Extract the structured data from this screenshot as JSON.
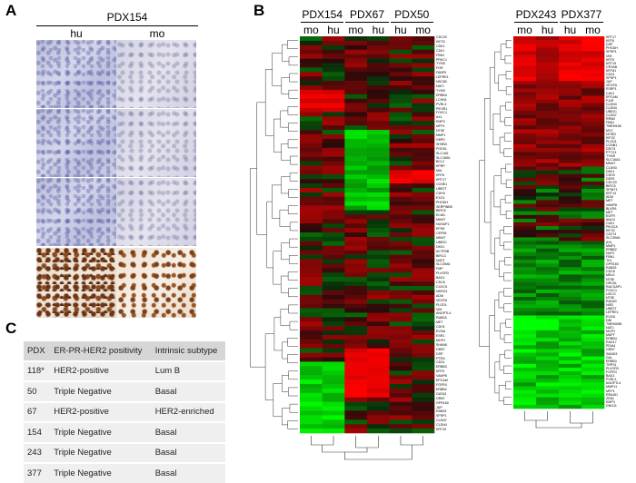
{
  "panelA": {
    "letter": "A",
    "title": "PDX154",
    "col_left": "hu",
    "col_right": "mo"
  },
  "panelB": {
    "letter": "B",
    "left_groups": [
      {
        "name": "PDX154",
        "cols": [
          "mo",
          "hu"
        ]
      },
      {
        "name": "PDX67",
        "cols": [
          "mo",
          "hu"
        ]
      },
      {
        "name": "PDX50",
        "cols": [
          "hu",
          "mo"
        ]
      }
    ],
    "right_groups": [
      {
        "name": "PDX243",
        "cols": [
          "mo",
          "hu"
        ]
      },
      {
        "name": "PDX377",
        "cols": [
          "hu",
          "mo"
        ]
      }
    ],
    "genes_left": [
      "CDC20",
      "KIF2C",
      "CDK1",
      "CAV1",
      "FBN1",
      "PRKC1",
      "TYMS",
      "FGR",
      "FABP5",
      "LEPRE1",
      "NDC80",
      "NAT1",
      "TYMS",
      "ERBB4",
      "LCHN1",
      "PVRL3",
      "PIK3R1",
      "FOXC1",
      "AXL",
      "EMP3",
      "MFP1",
      "NT5E",
      "MMP1",
      "G6PD",
      "SHSB3",
      "PODXL",
      "SLC1A5",
      "SLC16A5",
      "BCL2",
      "KPRP",
      "MIA",
      "KRT6",
      "KRT17",
      "CCNE1",
      "UBE2T",
      "CDH3",
      "EXO1",
      "PHGDH",
      "SERPINB5",
      "BIRC5",
      "ECAD",
      "MKI67",
      "NUSAP1",
      "EPS8",
      "CEP55",
      "MKI67",
      "UBE2C",
      "DKK1",
      "ACTR3B",
      "BIRC3",
      "NUF2",
      "SLC39A6",
      "FMP",
      "PLVOR3",
      "BAG1",
      "CDC6",
      "CXXC5",
      "NDRG1",
      "ADM",
      "VEGFA",
      "PLOD1",
      "VIM",
      "ANGPTL4",
      "RAB2A",
      "MET",
      "CDH1",
      "EVI2A",
      "ESR1",
      "MLPH",
      "SHANK",
      "GRB7",
      "DSP",
      "PTEN",
      "CD24",
      "ERBB3",
      "KRT5",
      "VAMP8",
      "EPCAM",
      "FGFR4",
      "ERBB2",
      "GATA3",
      "GRB7",
      "GPR160",
      "JUP",
      "RAB25",
      "SFRP1",
      "CLDN7",
      "CLDN4",
      "KRT19"
    ],
    "genes_right": [
      "KRT17",
      "KRT6",
      "DSP",
      "PHGDH",
      "SFRP1",
      "VIM",
      "KRT5",
      "KRT19",
      "CRYAB",
      "KRT81",
      "CD24",
      "SFRP1",
      "JUP",
      "VEGFA",
      "ESRP1",
      "CAV1",
      "EPCAM",
      "F11R",
      "CLDN3",
      "CLDN4",
      "UBE2C",
      "CLDN7",
      "RRM2",
      "FBN1",
      "TMEM158",
      "MYC",
      "NT5E2",
      "KIF2C",
      "PLOD1",
      "CCNB1",
      "DDIT4",
      "PTTG1",
      "TYMS",
      "SLC16A3",
      "MKI67",
      "CLDN3",
      "DKK1",
      "CDH3",
      "DDR1",
      "CDC20",
      "BIRC5",
      "SPINT1",
      "KRT14",
      "ADM",
      "MET",
      "VAMP8",
      "BLVRA",
      "MET",
      "EGFR",
      "ANLN",
      "CAV1",
      "PIK3CA",
      "KIF2C",
      "CD274",
      "SLC39A6",
      "AXL",
      "MMP1",
      "ERBB2",
      "NUF2",
      "FBN1",
      "TK1",
      "GPR160",
      "RAB25",
      "CDC6",
      "MELK",
      "NT5E",
      "ORC6L",
      "RACGAP1",
      "FOXC1",
      "UGCG",
      "NT5E",
      "RAD50",
      "NIR2",
      "UBE2T",
      "LEPRE1",
      "EVI2A",
      "DBI",
      "TMEM45B",
      "NAT1",
      "MLPH",
      "MAPT",
      "ERBB4",
      "RAD17",
      "PDIA4",
      "GRB7",
      "SMAD3",
      "GAL",
      "ERBB3",
      "TRPS1",
      "PLVOR3",
      "FGFR4",
      "BAG1",
      "PVRL3",
      "ANGPTL4",
      "MMP11",
      "MFP1",
      "RRAGD",
      "ZEB1",
      "EMP3",
      "GNG11"
    ]
  },
  "panelC": {
    "letter": "C",
    "headers": [
      "PDX",
      "ER-PR-HER2 positivity",
      "Intrinsic subtype"
    ],
    "rows": [
      [
        "118*",
        "HER2-positive",
        "Lum B"
      ],
      [
        "50",
        "Triple Negative",
        "Basal"
      ],
      [
        "67",
        "HER2-positive",
        "HER2-enriched"
      ],
      [
        "154",
        "Triple Negative",
        "Basal"
      ],
      [
        "243",
        "Triple Negative",
        "Basal"
      ],
      [
        "377",
        "Triple Negative",
        "Basal"
      ]
    ]
  },
  "colors": {
    "high": "#ff2a1a",
    "low": "#2aff2a",
    "mid": "#000000"
  }
}
